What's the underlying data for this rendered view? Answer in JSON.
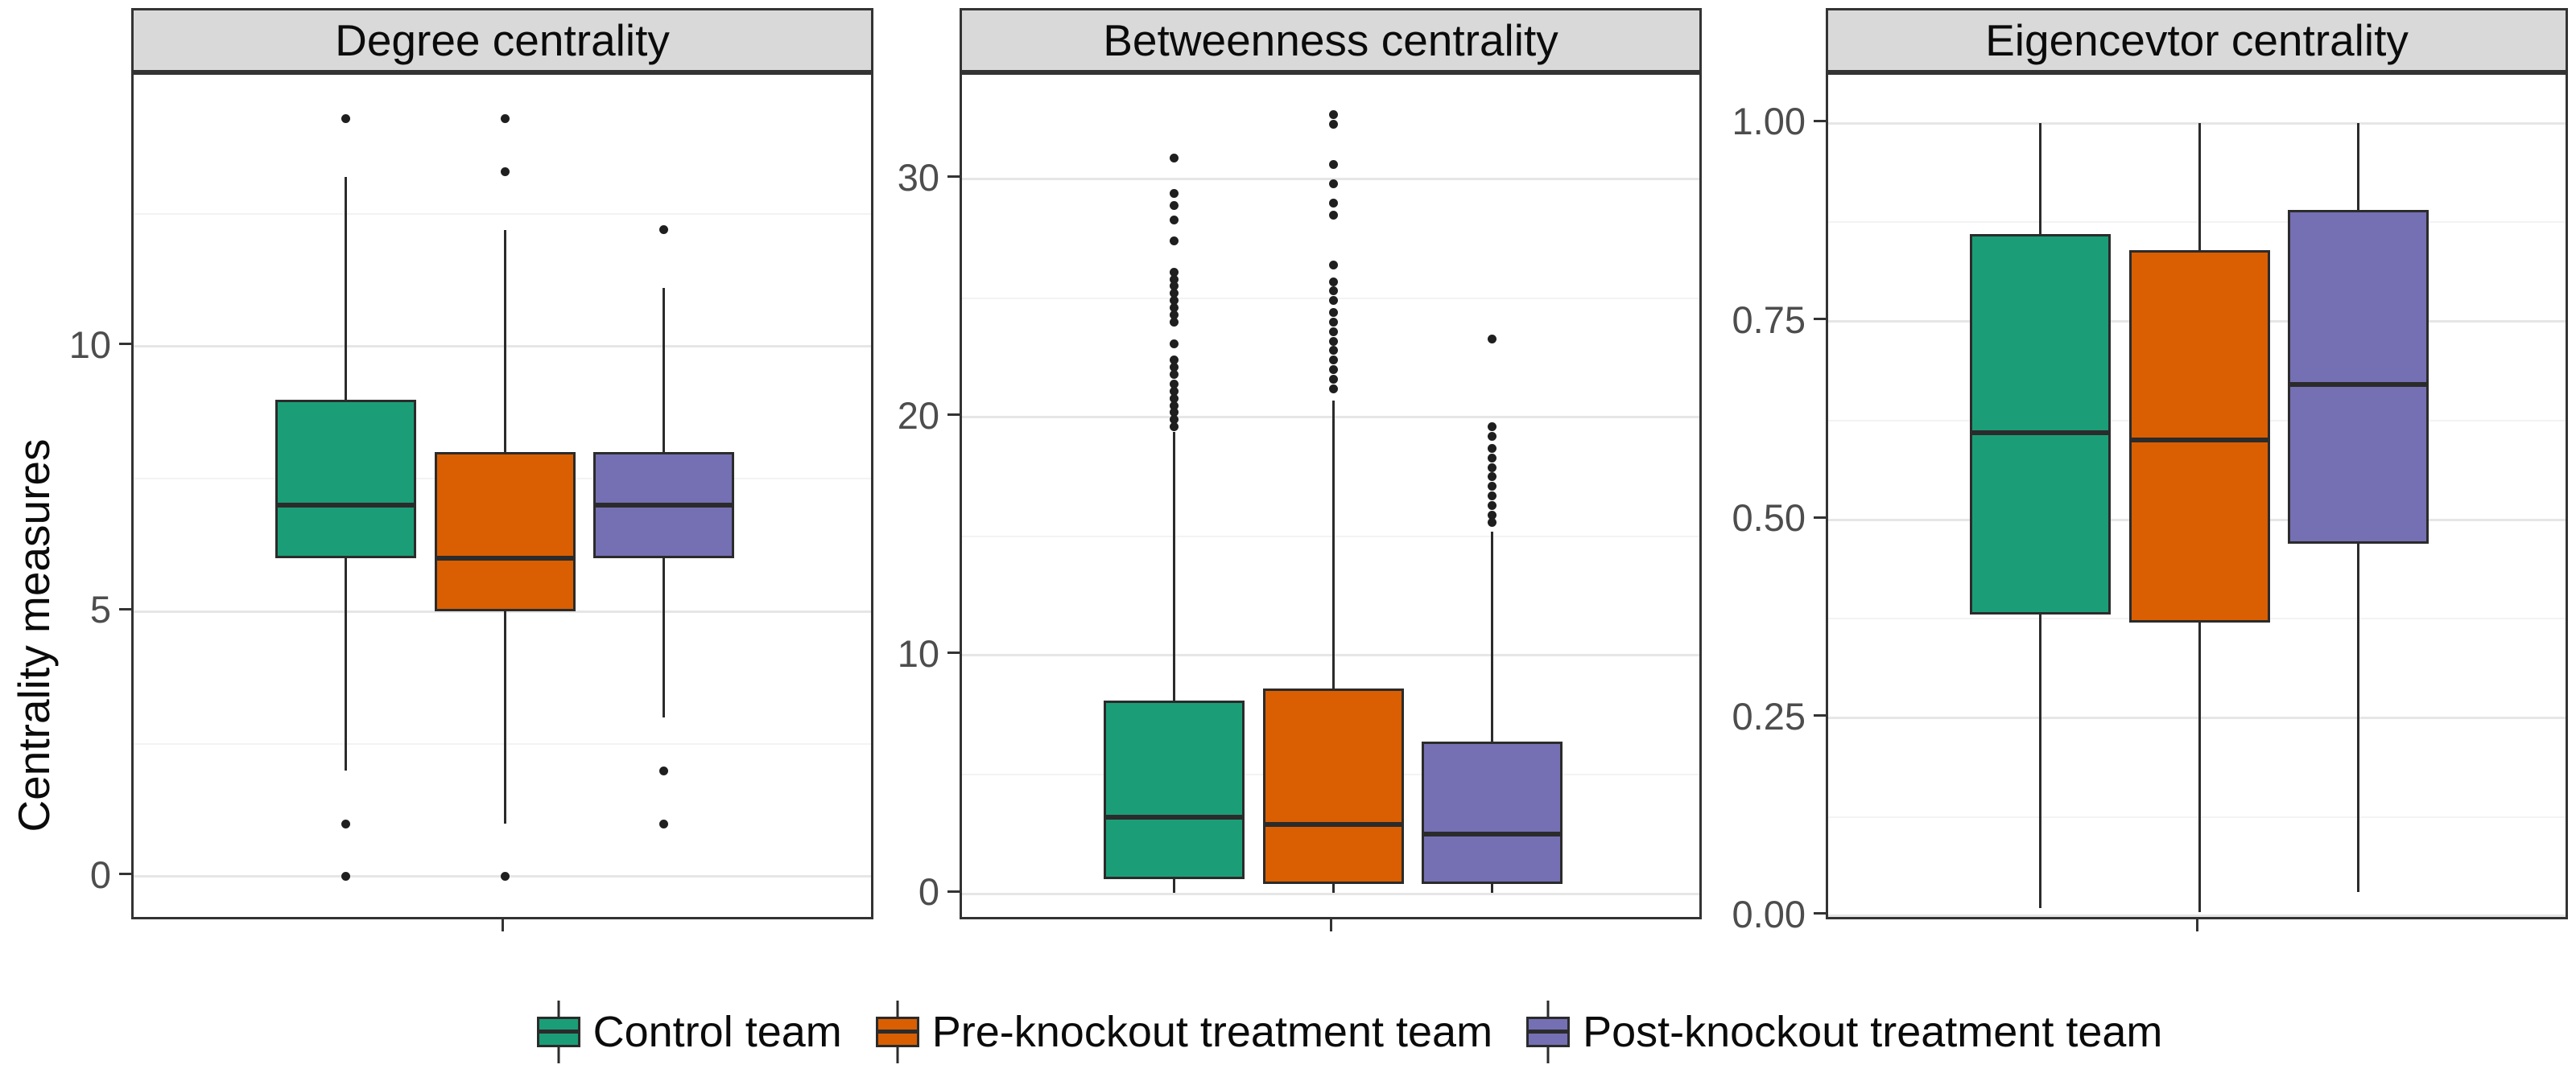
{
  "chart_data": {
    "type": "boxplot",
    "y_axis_title": "Centrality measures",
    "legend_position": "bottom",
    "groups": [
      "Control team",
      "Pre-knockout treatment team",
      "Post-knockout treatment team"
    ],
    "group_colors": [
      "#1B9E77",
      "#D95F02",
      "#7570B3"
    ],
    "style": {
      "strip_bg": "#D9D9D9",
      "panel_border": "#333333",
      "box_border": "#2B2B2B",
      "grid_major": "#E6E6E6",
      "grid_minor": "#F3F3F3",
      "tick_label_color": "#4D4D4D",
      "outlier_color": "#1F1F1F"
    },
    "panels": [
      {
        "title": "Degree centrality",
        "ylim": [
          -0.85,
          15.12
        ],
        "major_ticks": [
          {
            "value": 0,
            "label": "0"
          },
          {
            "value": 5,
            "label": "5"
          },
          {
            "value": 10,
            "label": "10"
          }
        ],
        "minor_ticks": [
          2.5,
          7.5,
          12.5
        ],
        "boxes": [
          {
            "group": "Control team",
            "color": "#1B9E77",
            "whisker_low": 2,
            "q1": 6,
            "median": 7,
            "q3": 9,
            "whisker_high": 13.2,
            "outliers": [
              14.3,
              1,
              0
            ]
          },
          {
            "group": "Pre-knockout treatment team",
            "color": "#D95F02",
            "whisker_low": 1,
            "q1": 5,
            "median": 6,
            "q3": 8,
            "whisker_high": 12.2,
            "outliers": [
              14.3,
              13.3,
              0
            ]
          },
          {
            "group": "Post-knockout treatment team",
            "color": "#7570B3",
            "whisker_low": 3,
            "q1": 6,
            "median": 7,
            "q3": 8,
            "whisker_high": 11.1,
            "outliers": [
              12.2,
              2,
              1
            ]
          }
        ]
      },
      {
        "title": "Betweenness centrality",
        "ylim": [
          -1.18,
          34.38
        ],
        "major_ticks": [
          {
            "value": 0,
            "label": "0"
          },
          {
            "value": 10,
            "label": "10"
          },
          {
            "value": 20,
            "label": "20"
          },
          {
            "value": 30,
            "label": "30"
          }
        ],
        "minor_ticks": [
          5,
          15,
          25
        ],
        "boxes": [
          {
            "group": "Control team",
            "color": "#1B9E77",
            "whisker_low": 0.05,
            "q1": 0.6,
            "median": 3.2,
            "q3": 8.1,
            "whisker_high": 19.4,
            "outliers": [
              30.9,
              29.4,
              28.9,
              28.3,
              27.4,
              26.1,
              25.8,
              25.5,
              25.2,
              24.9,
              24.6,
              24.3,
              24.0,
              23.1,
              22.4,
              22.1,
              21.8,
              21.4,
              21.1,
              20.8,
              20.5,
              20.2,
              19.9,
              19.6
            ]
          },
          {
            "group": "Pre-knockout treatment team",
            "color": "#D95F02",
            "whisker_low": 0.05,
            "q1": 0.4,
            "median": 2.9,
            "q3": 8.6,
            "whisker_high": 20.7,
            "outliers": [
              32.7,
              32.3,
              30.6,
              29.8,
              29.0,
              28.5,
              26.4,
              25.7,
              25.3,
              24.9,
              24.4,
              24.0,
              23.6,
              23.2,
              22.8,
              22.4,
              22.0,
              21.6,
              21.2
            ]
          },
          {
            "group": "Post-knockout treatment team",
            "color": "#7570B3",
            "whisker_low": 0.05,
            "q1": 0.4,
            "median": 2.5,
            "q3": 6.4,
            "whisker_high": 15.2,
            "outliers": [
              23.3,
              19.6,
              19.2,
              18.7,
              18.3,
              17.9,
              17.5,
              17.1,
              16.7,
              16.3,
              15.9,
              15.6
            ]
          }
        ]
      },
      {
        "title": "Eigencevtor centrality",
        "ylim": [
          -0.0071,
          1.0609
        ],
        "major_ticks": [
          {
            "value": 0,
            "label": "0.00"
          },
          {
            "value": 0.25,
            "label": "0.25"
          },
          {
            "value": 0.5,
            "label": "0.50"
          },
          {
            "value": 0.75,
            "label": "0.75"
          },
          {
            "value": 1,
            "label": "1.00"
          }
        ],
        "minor_ticks": [
          0.125,
          0.375,
          0.625,
          0.875
        ],
        "boxes": [
          {
            "group": "Control team",
            "color": "#1B9E77",
            "whisker_low": 0.01,
            "q1": 0.38,
            "median": 0.61,
            "q3": 0.86,
            "whisker_high": 1.0,
            "outliers": []
          },
          {
            "group": "Pre-knockout treatment team",
            "color": "#D95F02",
            "whisker_low": 0.005,
            "q1": 0.37,
            "median": 0.6,
            "q3": 0.84,
            "whisker_high": 1.0,
            "outliers": []
          },
          {
            "group": "Post-knockout treatment team",
            "color": "#7570B3",
            "whisker_low": 0.03,
            "q1": 0.47,
            "median": 0.67,
            "q3": 0.89,
            "whisker_high": 1.0,
            "outliers": []
          }
        ]
      }
    ],
    "legend": {
      "items": [
        {
          "label": "Control team",
          "color": "#1B9E77"
        },
        {
          "label": "Pre-knockout treatment team",
          "color": "#D95F02"
        },
        {
          "label": "Post-knockout treatment team",
          "color": "#7570B3"
        }
      ]
    }
  }
}
